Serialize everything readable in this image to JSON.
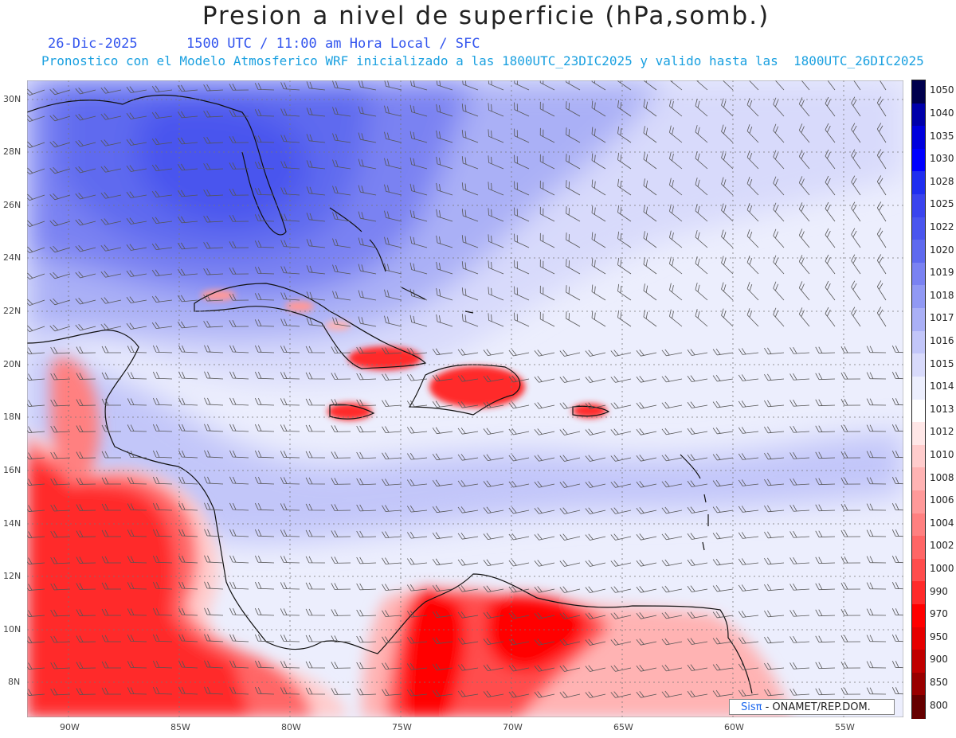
{
  "header": {
    "title": "Presion a nivel de superficie (hPa,somb.)",
    "date": "26-Dic-2025",
    "time": "1500 UTC / 11:00 am Hora Local / SFC",
    "description": "Pronostico con el Modelo Atmosferico WRF inicializado a las 1800UTC_23DIC2025 y valido hasta las  1800UTC_26DIC2025"
  },
  "axes": {
    "latitude_labels": [
      "30N",
      "28N",
      "26N",
      "24N",
      "22N",
      "20N",
      "18N",
      "16N",
      "14N",
      "12N",
      "10N",
      "8N"
    ],
    "longitude_labels": [
      "90W",
      "85W",
      "80W",
      "75W",
      "70W",
      "65W",
      "60W",
      "55W"
    ]
  },
  "colorbar": {
    "labels": [
      "1050",
      "1040",
      "1035",
      "1030",
      "1028",
      "1025",
      "1022",
      "1020",
      "1019",
      "1018",
      "1017",
      "1016",
      "1015",
      "1014",
      "1013",
      "1012",
      "1010",
      "1008",
      "1006",
      "1004",
      "1002",
      "1000",
      "990",
      "970",
      "950",
      "900",
      "850",
      "800"
    ],
    "colors": [
      "#00004d",
      "#0000aa",
      "#0000dd",
      "#0000ff",
      "#1f2ef0",
      "#3a44ee",
      "#4a55ee",
      "#5f6aef",
      "#7a82f2",
      "#9199f4",
      "#aab0f6",
      "#c2c6f9",
      "#d8dafb",
      "#eceefd",
      "#ffffff",
      "#ffe7e7",
      "#ffcccc",
      "#ffb3b3",
      "#ff9999",
      "#ff8080",
      "#ff6666",
      "#ff4d4d",
      "#ff2a2a",
      "#ff0000",
      "#e60000",
      "#c00000",
      "#990000",
      "#660000"
    ]
  },
  "credit": {
    "brand": "Sis",
    "brand_symbol": "π",
    "text": " - ONAMET/REP.DOM."
  }
}
